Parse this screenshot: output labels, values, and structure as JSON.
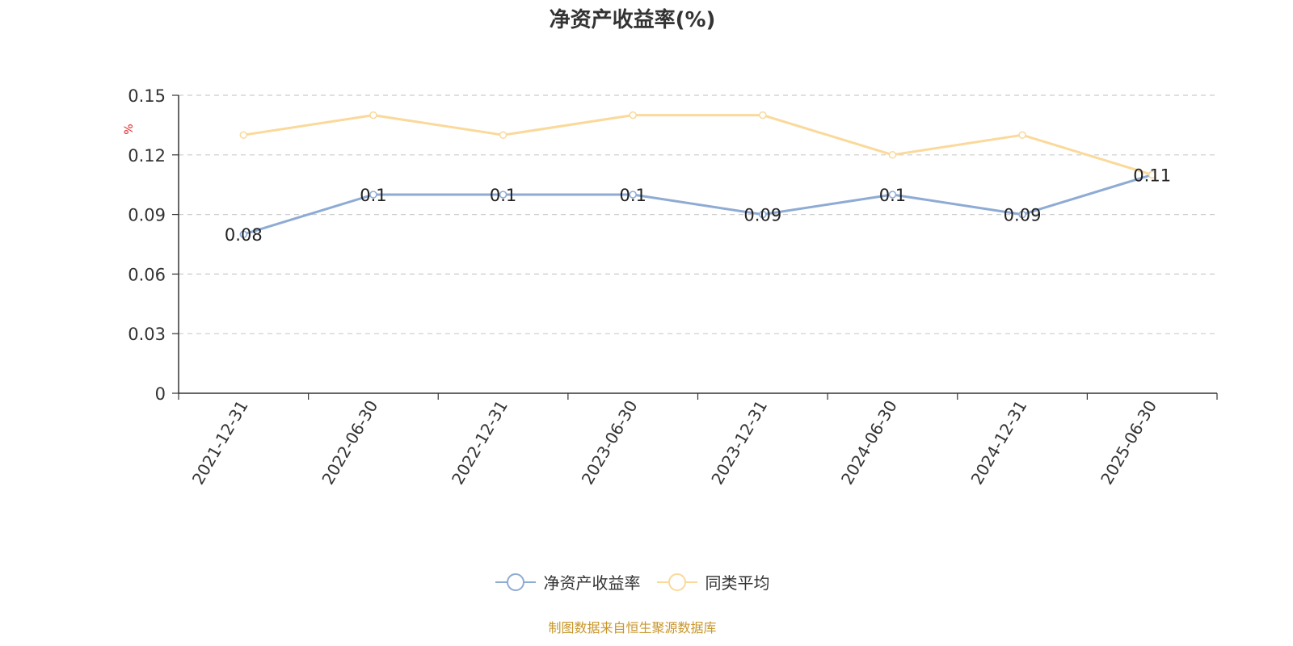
{
  "chart_data": {
    "type": "line",
    "title": "净资产收益率(%)",
    "ylabel": "%",
    "xlabel": "",
    "categories": [
      "2021-12-31",
      "2022-06-30",
      "2022-12-31",
      "2023-06-30",
      "2023-12-31",
      "2024-06-30",
      "2024-12-31",
      "2025-06-30"
    ],
    "yticks": [
      "0",
      "0.03",
      "0.06",
      "0.09",
      "0.12",
      "0.15"
    ],
    "ylim": [
      0,
      0.15
    ],
    "grid": true,
    "legend_position": "bottom",
    "series": [
      {
        "name": "净资产收益率",
        "color": "#8eabd4",
        "values": [
          0.08,
          0.1,
          0.1,
          0.1,
          0.09,
          0.1,
          0.09,
          0.11
        ],
        "labels": [
          "0.08",
          "0.1",
          "0.1",
          "0.1",
          "0.09",
          "0.1",
          "0.09",
          "0.11"
        ]
      },
      {
        "name": "同类平均",
        "color": "#fad99a",
        "values": [
          0.13,
          0.14,
          0.13,
          0.14,
          0.14,
          0.12,
          0.13,
          0.11
        ]
      }
    ]
  },
  "footer": "制图数据来自恒生聚源数据库"
}
